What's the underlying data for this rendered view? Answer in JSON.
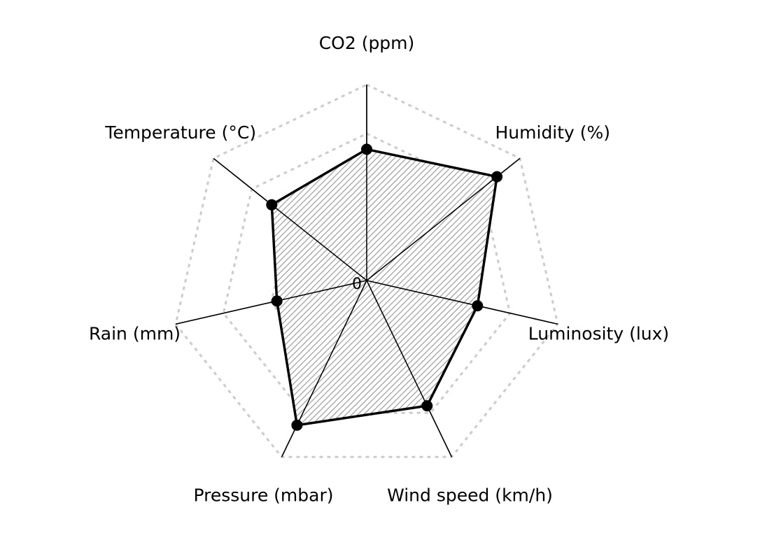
{
  "chart_data": {
    "type": "radar",
    "axes": [
      "CO2 (ppm)",
      "Humidity (%)",
      "Luminosity (lux)",
      "Wind speed (km/h)",
      "Pressure (mbar)",
      "Rain (mm)",
      "Temperature (°C)"
    ],
    "values": [
      0.67,
      0.85,
      0.58,
      0.71,
      0.82,
      0.47,
      0.62
    ],
    "range": [
      0,
      1
    ],
    "grid_levels": [
      0.25,
      0.5,
      0.75,
      1.0
    ],
    "grid_style": "dotted",
    "center_label": "0",
    "series_fill": "hatched",
    "colors": {
      "series": "#000000",
      "grid": "#cccccc",
      "spoke": "#000000",
      "hatch": "#888888"
    }
  }
}
